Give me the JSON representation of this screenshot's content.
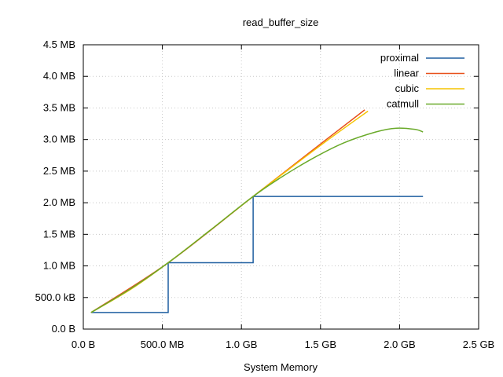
{
  "chart_data": {
    "type": "line",
    "title": "read_buffer_size",
    "xlabel": "System Memory",
    "ylabel": "",
    "x_unit": "GB",
    "y_unit": "MB",
    "xlim": [
      0,
      2.5
    ],
    "ylim": [
      0,
      4.5
    ],
    "grid": true,
    "legend_position": "top-right",
    "x_ticks": [
      {
        "value": 0,
        "label": "0.0  B"
      },
      {
        "value": 0.5,
        "label": "500.0 MB"
      },
      {
        "value": 1.0,
        "label": "1.0 GB"
      },
      {
        "value": 1.5,
        "label": "1.5 GB"
      },
      {
        "value": 2.0,
        "label": "2.0 GB"
      },
      {
        "value": 2.5,
        "label": "2.5 GB"
      }
    ],
    "y_ticks": [
      {
        "value": 0,
        "label": "0.0  B"
      },
      {
        "value": 0.5,
        "label": "500.0 kB"
      },
      {
        "value": 1.0,
        "label": "1.0 MB"
      },
      {
        "value": 1.5,
        "label": "1.5 MB"
      },
      {
        "value": 2.0,
        "label": "2.0 MB"
      },
      {
        "value": 2.5,
        "label": "2.5 MB"
      },
      {
        "value": 3.0,
        "label": "3.0 MB"
      },
      {
        "value": 3.5,
        "label": "3.5 MB"
      },
      {
        "value": 4.0,
        "label": "4.0 MB"
      },
      {
        "value": 4.5,
        "label": "4.5 MB"
      }
    ],
    "series": [
      {
        "name": "proximal",
        "color": "#1f5fa0",
        "points": [
          [
            0.0488,
            0.262
          ],
          [
            0.537,
            0.262
          ],
          [
            0.537,
            1.05
          ],
          [
            1.074,
            1.05
          ],
          [
            1.074,
            2.1
          ],
          [
            2.148,
            2.1
          ]
        ]
      },
      {
        "name": "linear",
        "color": "#e8501a",
        "points": [
          [
            0.0488,
            0.262
          ],
          [
            0.537,
            1.05
          ],
          [
            1.074,
            2.1
          ],
          [
            1.5,
            2.93
          ],
          [
            1.78,
            3.47
          ]
        ]
      },
      {
        "name": "cubic",
        "color": "#f5c400",
        "points": [
          [
            0.0488,
            0.262
          ],
          [
            0.3,
            0.63
          ],
          [
            0.537,
            1.05
          ],
          [
            0.8,
            1.56
          ],
          [
            1.074,
            2.1
          ],
          [
            1.3,
            2.53
          ],
          [
            1.55,
            3.0
          ],
          [
            1.8,
            3.45
          ]
        ]
      },
      {
        "name": "catmull",
        "color": "#6aaa2a",
        "points": [
          [
            0.0488,
            0.262
          ],
          [
            0.3,
            0.64
          ],
          [
            0.537,
            1.05
          ],
          [
            0.8,
            1.56
          ],
          [
            1.074,
            2.1
          ],
          [
            1.25,
            2.4
          ],
          [
            1.45,
            2.7
          ],
          [
            1.65,
            2.95
          ],
          [
            1.85,
            3.12
          ],
          [
            1.98,
            3.18
          ],
          [
            2.1,
            3.16
          ],
          [
            2.148,
            3.12
          ]
        ]
      }
    ]
  }
}
